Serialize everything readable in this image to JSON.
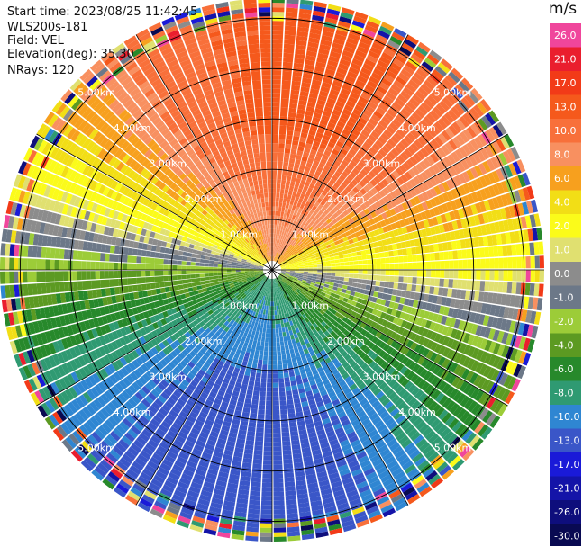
{
  "header": {
    "start_time": "Start time: 2023/08/25 11:42:45",
    "station": "WLS200s-181",
    "field": "Field: VEL",
    "elevation": "Elevation(deg): 35.30",
    "nrays": "NRays: 120"
  },
  "colorbar": {
    "unit": "m/s",
    "bins": [
      {
        "label": "26.0",
        "color": "#f0469c"
      },
      {
        "label": "21.0",
        "color": "#ea1e2e"
      },
      {
        "label": "17.0",
        "color": "#f23a18"
      },
      {
        "label": "13.0",
        "color": "#f5591c"
      },
      {
        "label": "10.0",
        "color": "#f8703a"
      },
      {
        "label": "8.0",
        "color": "#f89060"
      },
      {
        "label": "6.0",
        "color": "#f7a01e"
      },
      {
        "label": "4.0",
        "color": "#f2de16"
      },
      {
        "label": "2.0",
        "color": "#fbfb1a"
      },
      {
        "label": "1.0",
        "color": "#e0e070"
      },
      {
        "label": "0.0",
        "color": "#8c8c8c"
      },
      {
        "label": "-1.0",
        "color": "#6c7888"
      },
      {
        "label": "-2.0",
        "color": "#9ccc38"
      },
      {
        "label": "-4.0",
        "color": "#5c9a22"
      },
      {
        "label": "-6.0",
        "color": "#27892b"
      },
      {
        "label": "-8.0",
        "color": "#2f9a72"
      },
      {
        "label": "-10.0",
        "color": "#2f86d2"
      },
      {
        "label": "-13.0",
        "color": "#3a56c8"
      },
      {
        "label": "-17.0",
        "color": "#1a1ad8"
      },
      {
        "label": "-21.0",
        "color": "#1414a8"
      },
      {
        "label": "-26.0",
        "color": "#0e0e7c"
      },
      {
        "label": "-30.0",
        "color": "#090a52"
      }
    ]
  },
  "chart_data": {
    "type": "heatmap",
    "projection": "polar PPI",
    "field": "VEL",
    "units": "m/s",
    "rays": 120,
    "range_rings_km": [
      1.0,
      2.0,
      3.0,
      4.0,
      5.0
    ],
    "ring_labels": [
      "1.00km",
      "2.00km",
      "3.00km",
      "4.00km",
      "5.00km"
    ],
    "max_range_km": 5.4,
    "velocity_model": {
      "peak_positive_azimuth_deg": 10,
      "peak_positive_ms": 14,
      "peak_negative_azimuth_deg": 190,
      "peak_negative_ms": -12,
      "zero_line_azimuths_deg": [
        100,
        280
      ]
    }
  }
}
